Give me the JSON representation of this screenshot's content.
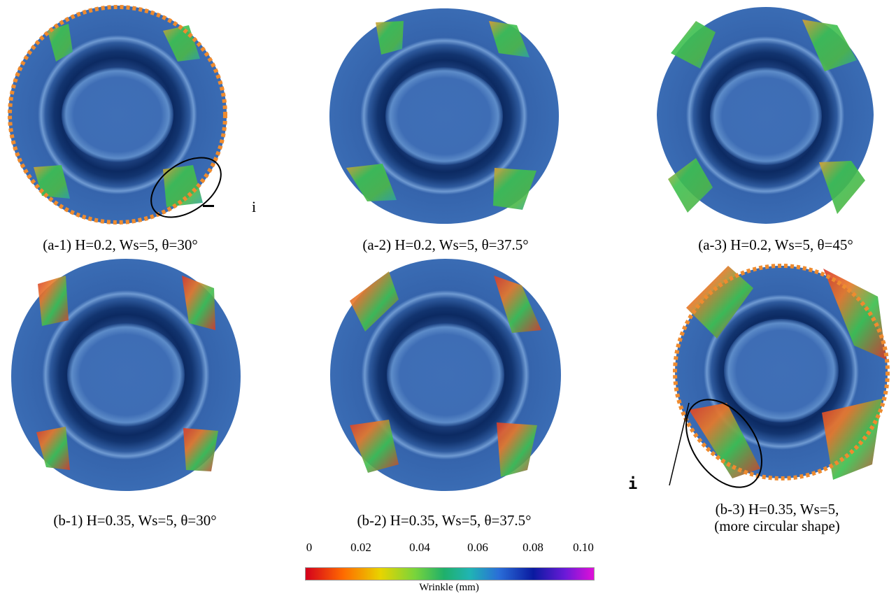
{
  "panels": [
    {
      "id": "a-1",
      "caption": "(a-1) H=0.2, Ws=5, θ=30°"
    },
    {
      "id": "a-2",
      "caption": "(a-2) H=0.2, Ws=5, θ=37.5°"
    },
    {
      "id": "a-3",
      "caption": "(a-3) H=0.2, Ws=5, θ=45°"
    },
    {
      "id": "b-1",
      "caption": "(b-1) H=0.35, Ws=5, θ=30°"
    },
    {
      "id": "b-2",
      "caption": "(b-2) H=0.35, Ws=5, θ=37.5°"
    },
    {
      "id": "b-3",
      "caption_line1": "(b-3) H=0.35, Ws=5,",
      "caption_line2": "(more circular shape)"
    }
  ],
  "markers": {
    "a1": "i",
    "b3": "i"
  },
  "colorbar": {
    "ticks": [
      "0",
      "0.02",
      "0.04",
      "0.06",
      "0.08",
      "0.10"
    ],
    "label": "Wrinkle (mm)",
    "colors": [
      "#d4001c",
      "#ff6a00",
      "#e8d400",
      "#78d43c",
      "#1fb06a",
      "#20b4b4",
      "#2a6ed8",
      "#0a1aa0",
      "#6a1ad8",
      "#e010d8"
    ]
  },
  "colors": {
    "sheet": "#3a6cb4",
    "ring_dark": "#0e2c66",
    "outline_dots": "#ee8b2f",
    "wrinkle_hi": "#d83a2a",
    "wrinkle_mid": "#3cc050"
  }
}
